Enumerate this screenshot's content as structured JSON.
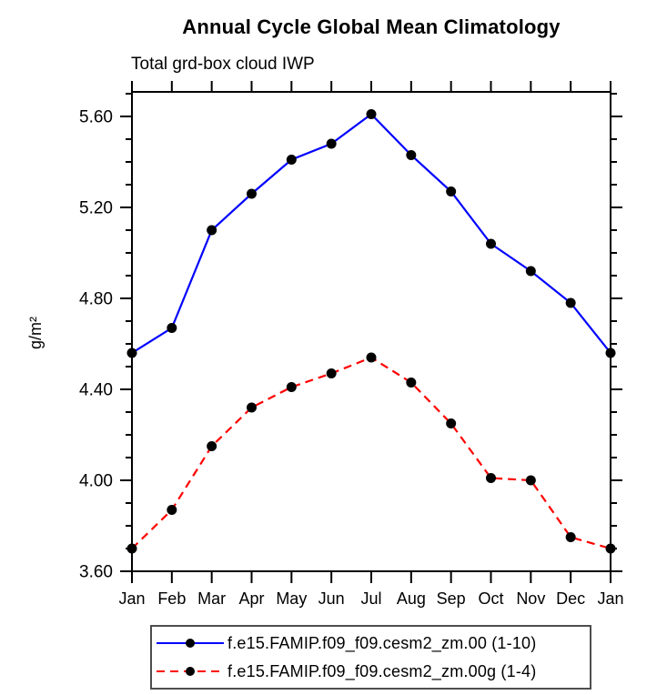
{
  "chart_data": {
    "type": "line",
    "title": "Annual Cycle Global Mean Climatology",
    "subtitle": "Total grd-box cloud IWP",
    "xlabel": "",
    "ylabel": "g/m²",
    "categories": [
      "Jan",
      "Feb",
      "Mar",
      "Apr",
      "May",
      "Jun",
      "Jul",
      "Aug",
      "Sep",
      "Oct",
      "Nov",
      "Dec",
      "Jan"
    ],
    "series": [
      {
        "name": "f.e15.FAMIP.f09_f09.cesm2_zm.00 (1-10)",
        "color": "#0000ff",
        "line_style": "solid",
        "marker": "filled-circle",
        "marker_color": "#000000",
        "values": [
          4.56,
          4.67,
          5.1,
          5.26,
          5.41,
          5.48,
          5.61,
          5.43,
          5.27,
          5.04,
          4.92,
          4.78,
          4.56
        ]
      },
      {
        "name": "f.e15.FAMIP.f09_f09.cesm2_zm.00g (1-4)",
        "color": "#ff0000",
        "line_style": "dashed",
        "marker": "filled-circle",
        "marker_color": "#000000",
        "values": [
          3.7,
          3.87,
          4.15,
          4.32,
          4.41,
          4.47,
          4.54,
          4.43,
          4.25,
          4.01,
          4.0,
          3.75,
          3.7
        ]
      }
    ],
    "ylim": [
      3.6,
      5.708
    ],
    "y_major_ticks": [
      3.6,
      4.0,
      4.4,
      4.8,
      5.2,
      5.6
    ],
    "y_tick_labels": [
      "3.60",
      "4.00",
      "4.40",
      "4.80",
      "5.20",
      "5.60"
    ],
    "y_minor_step": 0.1,
    "grid": false,
    "frame": "box-with-outward-ticks",
    "legend_position": "bottom",
    "axis_color": "#000000"
  }
}
